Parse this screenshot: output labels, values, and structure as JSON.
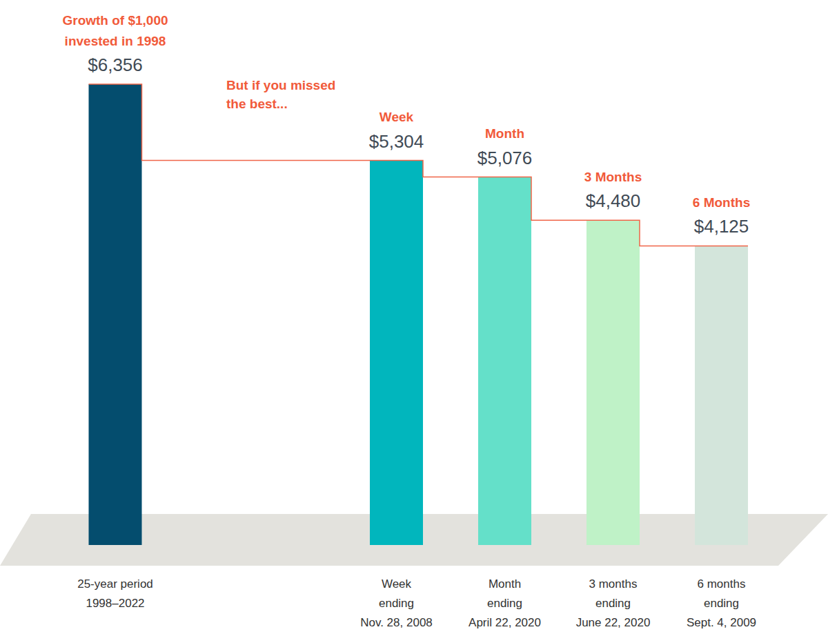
{
  "chart_data": {
    "type": "bar",
    "annotation": "But if you missed\nthe best...",
    "headers": [
      "Growth of $1,000\ninvested in 1998",
      "Week",
      "Month",
      "3 Months",
      "6 Months"
    ],
    "categories": [
      "25-year period\n1998–2022",
      "Week\nending\nNov. 28, 2008",
      "Month\nending\nApril 22, 2020",
      "3 months\nending\nJune 22, 2020",
      "6 months\nending\nSept. 4, 2009"
    ],
    "values": [
      6356,
      5304,
      5076,
      4480,
      4125
    ],
    "value_labels": [
      "$6,356",
      "$5,304",
      "$5,076",
      "$4,480",
      "$4,125"
    ],
    "colors": [
      "#044d6e",
      "#01b6bd",
      "#64e0c9",
      "#bff2c7",
      "#d3e5db"
    ],
    "ylim": [
      0,
      6356
    ],
    "data_labels": true,
    "tick_labels": "x",
    "grid": false
  }
}
